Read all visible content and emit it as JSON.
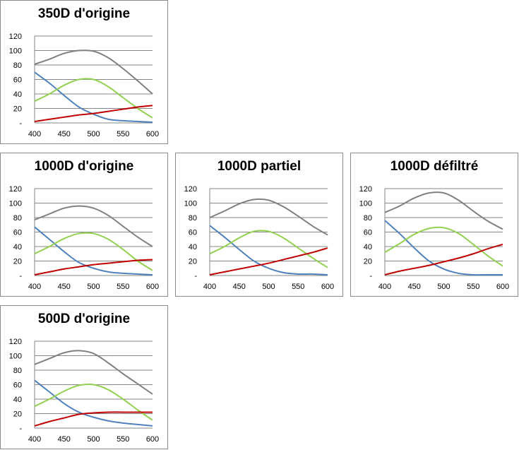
{
  "colors": {
    "gray": "#808080",
    "blue": "#4f81bd",
    "green": "#92d050",
    "red": "#c00000",
    "grid": "#868686"
  },
  "chart_data": [
    {
      "type": "line",
      "title": "350D d'origine",
      "x": [
        400,
        425,
        450,
        475,
        500,
        525,
        550,
        575,
        600
      ],
      "xticks": [
        "400",
        "450",
        "500",
        "550",
        "600"
      ],
      "yticks": [
        "-",
        "20",
        "40",
        "60",
        "80",
        "100",
        "120"
      ],
      "ylim": [
        0,
        120
      ],
      "xlim": [
        400,
        600
      ],
      "grid": true,
      "series": [
        {
          "name": "gray",
          "values": [
            81,
            88,
            96,
            100,
            99,
            90,
            75,
            58,
            40
          ]
        },
        {
          "name": "blue",
          "values": [
            70,
            55,
            38,
            22,
            12,
            5,
            3,
            2,
            1
          ]
        },
        {
          "name": "green",
          "values": [
            30,
            40,
            52,
            60,
            60,
            50,
            35,
            20,
            7
          ]
        },
        {
          "name": "red",
          "values": [
            2,
            5,
            8,
            11,
            13,
            16,
            19,
            22,
            24
          ]
        }
      ]
    },
    {
      "type": "line",
      "title": "1000D d'origine",
      "x": [
        400,
        425,
        450,
        475,
        500,
        525,
        550,
        575,
        600
      ],
      "xticks": [
        "400",
        "450",
        "500",
        "550",
        "600"
      ],
      "yticks": [
        "-",
        "20",
        "40",
        "60",
        "80",
        "100",
        "120"
      ],
      "ylim": [
        0,
        120
      ],
      "xlim": [
        400,
        600
      ],
      "grid": true,
      "series": [
        {
          "name": "gray",
          "values": [
            77,
            85,
            93,
            96,
            93,
            83,
            68,
            53,
            40
          ]
        },
        {
          "name": "blue",
          "values": [
            67,
            50,
            33,
            18,
            10,
            5,
            3,
            2,
            1
          ]
        },
        {
          "name": "green",
          "values": [
            30,
            40,
            51,
            58,
            58,
            50,
            36,
            20,
            7
          ]
        },
        {
          "name": "red",
          "values": [
            1,
            5,
            9,
            12,
            15,
            17,
            19,
            21,
            22
          ]
        }
      ]
    },
    {
      "type": "line",
      "title": "1000D partiel",
      "x": [
        400,
        425,
        450,
        475,
        500,
        525,
        550,
        575,
        600
      ],
      "xticks": [
        "400",
        "450",
        "500",
        "550",
        "600"
      ],
      "yticks": [
        "-",
        "20",
        "40",
        "60",
        "80",
        "100",
        "120"
      ],
      "ylim": [
        0,
        120
      ],
      "xlim": [
        400,
        600
      ],
      "grid": true,
      "series": [
        {
          "name": "gray",
          "values": [
            80,
            89,
            99,
            105,
            104,
            95,
            82,
            68,
            56
          ]
        },
        {
          "name": "blue",
          "values": [
            69,
            53,
            36,
            20,
            10,
            4,
            2,
            2,
            1
          ]
        },
        {
          "name": "green",
          "values": [
            30,
            40,
            52,
            61,
            61,
            52,
            38,
            24,
            11
          ]
        },
        {
          "name": "red",
          "values": [
            1,
            5,
            9,
            13,
            17,
            22,
            27,
            32,
            38
          ]
        }
      ]
    },
    {
      "type": "line",
      "title": "1000D défiltré",
      "x": [
        400,
        425,
        450,
        475,
        500,
        525,
        550,
        575,
        600
      ],
      "xticks": [
        "400",
        "450",
        "500",
        "550",
        "600"
      ],
      "yticks": [
        "-",
        "20",
        "40",
        "60",
        "80",
        "100",
        "120"
      ],
      "ylim": [
        0,
        120
      ],
      "xlim": [
        400,
        600
      ],
      "grid": true,
      "series": [
        {
          "name": "gray",
          "values": [
            87,
            96,
            107,
            114,
            114,
            104,
            89,
            75,
            64
          ]
        },
        {
          "name": "blue",
          "values": [
            76,
            58,
            38,
            20,
            9,
            3,
            1,
            1,
            1
          ]
        },
        {
          "name": "green",
          "values": [
            32,
            44,
            57,
            65,
            66,
            58,
            43,
            27,
            13
          ]
        },
        {
          "name": "red",
          "values": [
            1,
            6,
            10,
            14,
            19,
            24,
            30,
            37,
            43
          ]
        }
      ]
    },
    {
      "type": "line",
      "title": "500D d'origine",
      "x": [
        400,
        425,
        450,
        475,
        500,
        525,
        550,
        575,
        600
      ],
      "xticks": [
        "400",
        "450",
        "500",
        "550",
        "600"
      ],
      "yticks": [
        "-",
        "20",
        "40",
        "60",
        "80",
        "100",
        "120"
      ],
      "ylim": [
        0,
        120
      ],
      "xlim": [
        400,
        600
      ],
      "grid": true,
      "series": [
        {
          "name": "gray",
          "values": [
            88,
            96,
            104,
            107,
            103,
            90,
            75,
            61,
            47
          ]
        },
        {
          "name": "blue",
          "values": [
            66,
            50,
            34,
            22,
            15,
            10,
            7,
            5,
            3
          ]
        },
        {
          "name": "green",
          "values": [
            30,
            40,
            51,
            59,
            60,
            53,
            40,
            25,
            11
          ]
        },
        {
          "name": "red",
          "values": [
            3,
            9,
            14,
            19,
            21,
            22,
            22,
            22,
            22
          ]
        }
      ]
    }
  ]
}
